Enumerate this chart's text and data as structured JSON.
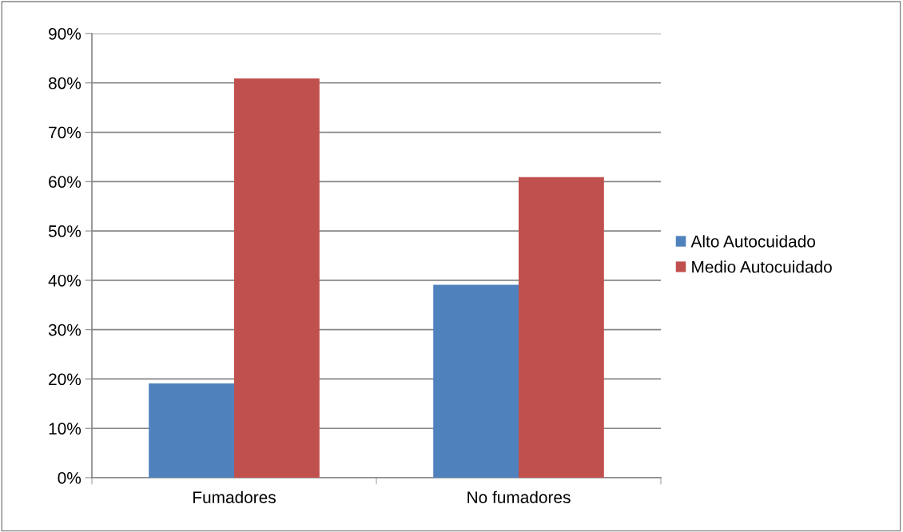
{
  "chart_data": {
    "type": "bar",
    "categories": [
      "Fumadores",
      "No fumadores"
    ],
    "series": [
      {
        "name": "Alto Autocuidado",
        "color": "#4f81bd",
        "values": [
          19.1,
          39.1
        ]
      },
      {
        "name": "Medio Autocuidado",
        "color": "#c0504d",
        "values": [
          80.9,
          60.9
        ]
      }
    ],
    "ylim": [
      0,
      90
    ],
    "yticks": [
      {
        "value": 0,
        "label": "0%"
      },
      {
        "value": 10,
        "label": "10%"
      },
      {
        "value": 20,
        "label": "20%"
      },
      {
        "value": 30,
        "label": "30%"
      },
      {
        "value": 40,
        "label": "40%"
      },
      {
        "value": 50,
        "label": "50%"
      },
      {
        "value": 60,
        "label": "60%"
      },
      {
        "value": 70,
        "label": "70%"
      },
      {
        "value": 80,
        "label": "80%"
      },
      {
        "value": 90,
        "label": "90%"
      }
    ],
    "grid": "y",
    "legend": "right"
  }
}
